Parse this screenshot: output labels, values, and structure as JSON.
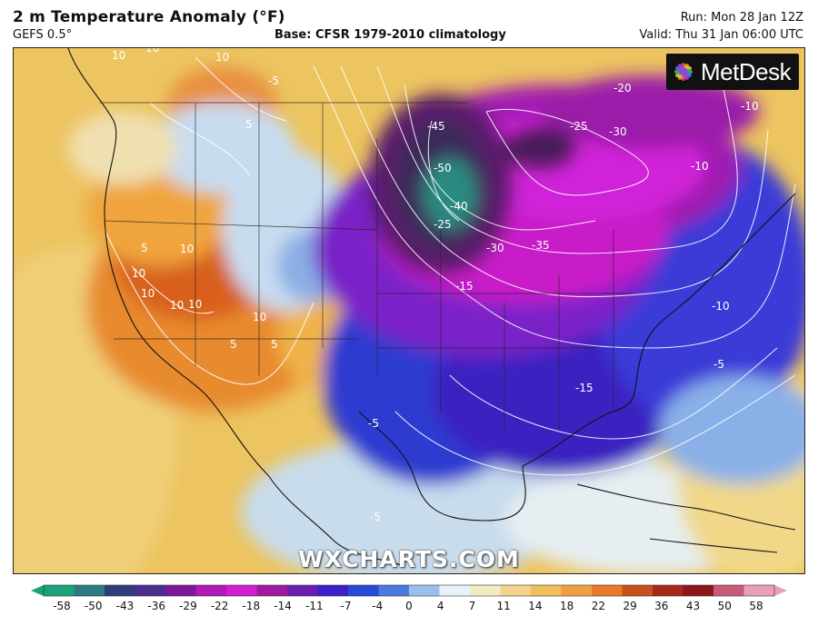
{
  "header": {
    "title": "2 m Temperature Anomaly (°F)",
    "model": "GEFS 0.5°",
    "base": "Base: CFSR 1979-2010 climatology",
    "run": "Run: Mon 28 Jan 12Z",
    "valid": "Valid: Thu 31 Jan 06:00 UTC"
  },
  "logo": {
    "text": "MetDesk",
    "icon": "metdesk-flower-icon"
  },
  "watermark": "WXCHARTS.COM",
  "colorbar": {
    "ticks": [
      "-58",
      "-50",
      "-43",
      "-36",
      "-29",
      "-22",
      "-18",
      "-14",
      "-11",
      "-7",
      "-4",
      "0",
      "4",
      "7",
      "11",
      "14",
      "18",
      "22",
      "29",
      "36",
      "43",
      "50",
      "58"
    ],
    "colors": [
      "#1aa37a",
      "#2f7a80",
      "#2c3f7a",
      "#4a2f8c",
      "#7a1a9a",
      "#b01ab8",
      "#d21ed2",
      "#a01aa0",
      "#6b1fb0",
      "#3a22c8",
      "#2a4ad8",
      "#4a7ae0",
      "#9ac0ea",
      "#e8f2f8",
      "#f2eac0",
      "#f2d48a",
      "#f0be5a",
      "#f0a040",
      "#e87a2a",
      "#c8501c",
      "#a8281a",
      "#8a1a1a",
      "#c85a78",
      "#e8a0b8"
    ]
  },
  "contour_labels": [
    "10",
    "10",
    "10",
    "-5",
    "-20",
    "-10",
    "5",
    "-45",
    "-25",
    "-30",
    "-10",
    "-50",
    "-40",
    "-25",
    "-30",
    "-35",
    "5",
    "10",
    "10",
    "10",
    "10",
    "10",
    "-15",
    "-10",
    "10",
    "5",
    "-5",
    "-15",
    "-5",
    "5",
    "-5"
  ]
}
